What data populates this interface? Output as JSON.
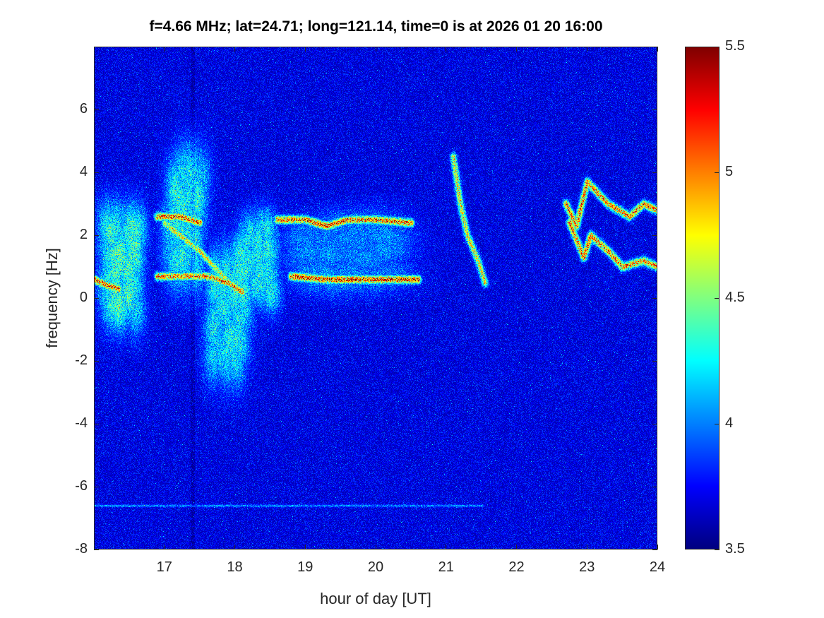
{
  "chart_data": {
    "type": "heatmap",
    "title": "f=4.66 MHz;  lat=24.71; long=121.14, time=0 is at 2026 01 20 16:00",
    "xlabel": "hour of day [UT]",
    "ylabel": "frequency [Hz]",
    "xlim": [
      16,
      24
    ],
    "ylim": [
      -8,
      8
    ],
    "xticks": [
      17,
      18,
      19,
      20,
      21,
      22,
      23,
      24
    ],
    "yticks": [
      -8,
      -6,
      -4,
      -2,
      0,
      2,
      4,
      6
    ],
    "colorbar": {
      "clim": [
        3.5,
        5.5
      ],
      "ticks": [
        "3.5",
        "4",
        "4.5",
        "5",
        "5.5"
      ],
      "colormap": "jet"
    },
    "background_level": 3.8,
    "traces": [
      {
        "points": [
          [
            16.0,
            0.6
          ],
          [
            16.2,
            0.4
          ],
          [
            16.35,
            0.3
          ]
        ],
        "peak": 5.4
      },
      {
        "points": [
          [
            16.9,
            2.6
          ],
          [
            17.2,
            2.6
          ],
          [
            17.5,
            2.4
          ]
        ],
        "peak": 5.4
      },
      {
        "points": [
          [
            16.9,
            0.7
          ],
          [
            17.3,
            0.7
          ],
          [
            17.6,
            0.7
          ],
          [
            17.9,
            0.5
          ],
          [
            18.1,
            0.2
          ]
        ],
        "peak": 5.3
      },
      {
        "points": [
          [
            17.0,
            2.4
          ],
          [
            17.5,
            1.5
          ],
          [
            18.0,
            0.3
          ]
        ],
        "peak": 5.0
      },
      {
        "points": [
          [
            18.6,
            2.5
          ],
          [
            19.0,
            2.5
          ],
          [
            19.3,
            2.3
          ],
          [
            19.6,
            2.5
          ],
          [
            20.0,
            2.5
          ],
          [
            20.5,
            2.4
          ]
        ],
        "peak": 5.4
      },
      {
        "points": [
          [
            18.8,
            0.7
          ],
          [
            19.3,
            0.6
          ],
          [
            19.8,
            0.6
          ],
          [
            20.2,
            0.6
          ],
          [
            20.6,
            0.6
          ]
        ],
        "peak": 5.5
      },
      {
        "points": [
          [
            21.1,
            4.5
          ],
          [
            21.2,
            3.0
          ],
          [
            21.3,
            2.0
          ],
          [
            21.45,
            1.2
          ],
          [
            21.55,
            0.5
          ]
        ],
        "peak": 5.0
      },
      {
        "points": [
          [
            22.7,
            3.0
          ],
          [
            22.85,
            2.3
          ],
          [
            23.0,
            3.7
          ],
          [
            23.3,
            3.0
          ],
          [
            23.6,
            2.6
          ],
          [
            23.8,
            3.0
          ],
          [
            24.0,
            2.8
          ]
        ],
        "peak": 5.3
      },
      {
        "points": [
          [
            22.75,
            2.4
          ],
          [
            22.95,
            1.3
          ],
          [
            23.05,
            2.0
          ],
          [
            23.3,
            1.5
          ],
          [
            23.5,
            1.0
          ],
          [
            23.8,
            1.2
          ],
          [
            24.0,
            1.0
          ]
        ],
        "peak": 5.3
      },
      {
        "points": [
          [
            16.0,
            -6.6
          ],
          [
            21.5,
            -6.6
          ]
        ],
        "peak": 4.2
      }
    ],
    "diffuse_regions": [
      {
        "center": [
          16.4,
          1.0
        ],
        "spread": [
          0.3,
          1.8
        ],
        "peak": 4.6
      },
      {
        "center": [
          17.3,
          2.5
        ],
        "spread": [
          0.3,
          2.2
        ],
        "peak": 4.5
      },
      {
        "center": [
          17.9,
          -0.5
        ],
        "spread": [
          0.3,
          2.0
        ],
        "peak": 4.5
      },
      {
        "center": [
          18.3,
          1.2
        ],
        "spread": [
          0.3,
          1.4
        ],
        "peak": 4.5
      },
      {
        "center": [
          19.6,
          1.5
        ],
        "spread": [
          0.8,
          1.2
        ],
        "peak": 4.2
      }
    ]
  }
}
